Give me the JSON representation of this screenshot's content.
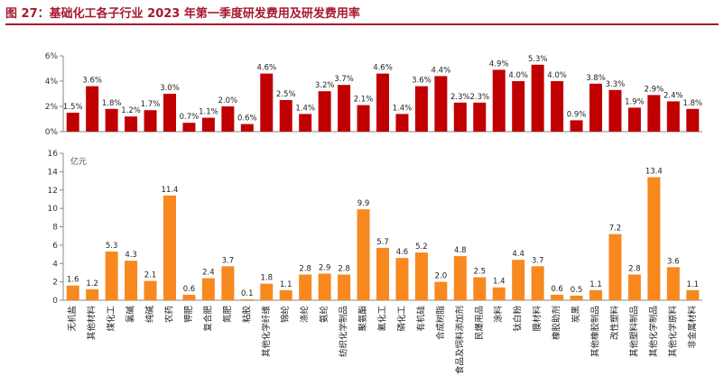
{
  "figure_title": "图 27：基础化工各子行业 2023 年第一季度研发费用及研发费用率",
  "colors": {
    "rate_bar": "#c00000",
    "expense_bar": "#f7891f",
    "title": "#a6192e",
    "axis": "#888888"
  },
  "chart_data": [
    {
      "type": "bar",
      "name": "研发费用率",
      "categories": [
        "无机盐",
        "其他材料",
        "煤化工",
        "氯碱",
        "纯碱",
        "农药",
        "钾肥",
        "复合肥",
        "氮肥",
        "粘胶",
        "其他化学纤维",
        "锦纶",
        "涤纶",
        "氨纶",
        "纺织化学制品",
        "聚氨酯",
        "氟化工",
        "磷化工",
        "有机硅",
        "合成树脂",
        "食品及饲料添加剂",
        "民爆用品",
        "涂料",
        "钛白粉",
        "膜材料",
        "橡胶助剂",
        "炭黑",
        "其他橡胶制品",
        "改性塑料",
        "其他塑料制品",
        "其他化学制品",
        "其他化学原料",
        "非金属材料"
      ],
      "values": [
        1.5,
        3.6,
        1.8,
        1.2,
        1.7,
        3.0,
        0.7,
        1.1,
        2.0,
        0.6,
        4.6,
        2.5,
        1.4,
        3.2,
        3.7,
        2.1,
        4.6,
        1.4,
        3.6,
        4.4,
        2.3,
        2.3,
        4.9,
        4.0,
        5.3,
        4.0,
        0.9,
        3.8,
        3.3,
        1.9,
        2.9,
        2.4,
        1.8
      ],
      "value_labels": [
        "1.5%",
        "3.6%",
        "1.8%",
        "1.2%",
        "1.7%",
        "3.0%",
        "0.7%",
        "1.1%",
        "2.0%",
        "0.6%",
        "4.6%",
        "2.5%",
        "1.4%",
        "3.2%",
        "3.7%",
        "2.1%",
        "4.6%",
        "1.4%",
        "3.6%",
        "4.4%",
        "2.3%",
        "2.3%",
        "4.9%",
        "4.0%",
        "5.3%",
        "4.0%",
        "0.9%",
        "3.8%",
        "3.3%",
        "1.9%",
        "2.9%",
        "2.4%",
        "1.8%"
      ],
      "ylim": [
        0,
        6
      ],
      "y_ticks": [
        0,
        2,
        4,
        6
      ],
      "y_tick_labels": [
        "0%",
        "2%",
        "4%",
        "6%"
      ]
    },
    {
      "type": "bar",
      "name": "研发费用",
      "unit_label": "亿元",
      "categories": [
        "无机盐",
        "其他材料",
        "煤化工",
        "氯碱",
        "纯碱",
        "农药",
        "钾肥",
        "复合肥",
        "氮肥",
        "粘胶",
        "其他化学纤维",
        "锦纶",
        "涤纶",
        "氨纶",
        "纺织化学制品",
        "聚氨酯",
        "氟化工",
        "磷化工",
        "有机硅",
        "合成树脂",
        "食品及饲料添加剂",
        "民爆用品",
        "涂料",
        "钛白粉",
        "膜材料",
        "橡胶助剂",
        "炭黑",
        "其他橡胶制品",
        "改性塑料",
        "其他塑料制品",
        "其他化学制品",
        "其他化学原料",
        "非金属材料"
      ],
      "values": [
        1.6,
        1.2,
        5.3,
        4.3,
        2.1,
        11.4,
        0.6,
        2.4,
        3.7,
        0.1,
        1.8,
        1.1,
        2.8,
        2.9,
        2.8,
        9.9,
        5.7,
        4.6,
        5.2,
        2.0,
        4.8,
        2.5,
        1.4,
        4.4,
        3.7,
        0.6,
        0.5,
        1.1,
        7.2,
        2.8,
        13.4,
        3.6,
        1.1
      ],
      "value_labels": [
        "1.6",
        "1.2",
        "5.3",
        "4.3",
        "2.1",
        "11.4",
        "0.6",
        "2.4",
        "3.7",
        "0.1",
        "1.8",
        "1.1",
        "2.8",
        "2.9",
        "2.8",
        "9.9",
        "5.7",
        "4.6",
        "5.2",
        "2.0",
        "4.8",
        "2.5",
        "1.4",
        "4.4",
        "3.7",
        "0.6",
        "0.5",
        "1.1",
        "7.2",
        "2.8",
        "13.4",
        "3.6",
        "1.1"
      ],
      "ylim": [
        0,
        16
      ],
      "y_ticks": [
        0,
        2,
        4,
        6,
        8,
        10,
        12,
        14,
        16
      ],
      "y_tick_labels": [
        "0",
        "2",
        "4",
        "6",
        "8",
        "10",
        "12",
        "14",
        "16"
      ]
    }
  ]
}
